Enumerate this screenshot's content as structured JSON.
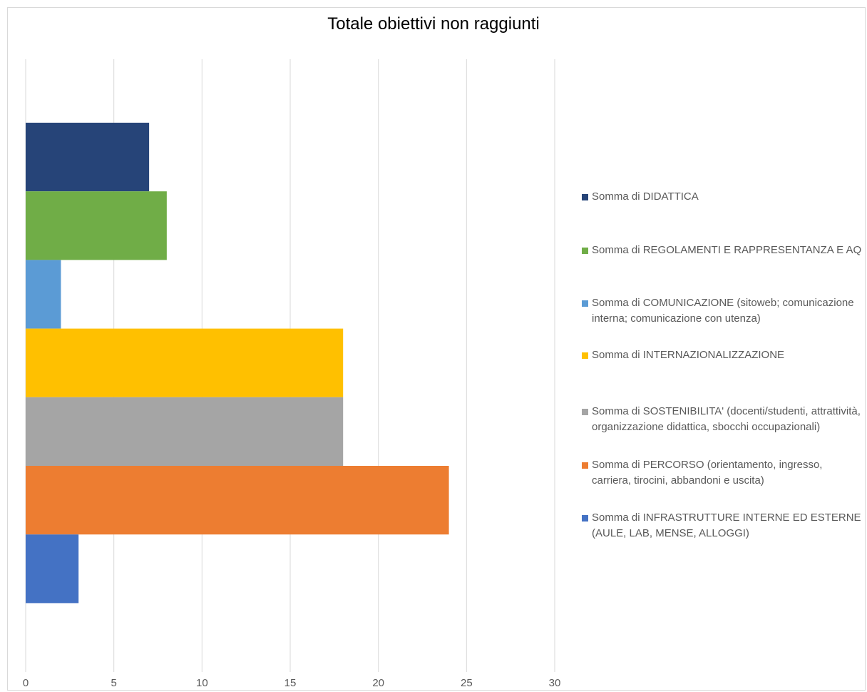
{
  "chart_data": {
    "type": "bar",
    "orientation": "horizontal",
    "title": "Totale obiettivi non raggiunti",
    "xlabel": "",
    "ylabel": "",
    "xlim": [
      0,
      30
    ],
    "x_ticks": [
      "0",
      "5",
      "10",
      "15",
      "20",
      "25",
      "30"
    ],
    "grid": "vertical",
    "legend_position": "right",
    "series": [
      {
        "name": "Somma di DIDATTICA",
        "value": 7,
        "color": "#264478"
      },
      {
        "name": "Somma di REGOLAMENTI E RAPPRESENTANZA E AQ",
        "value": 8,
        "color": "#70AD47"
      },
      {
        "name": "Somma di COMUNICAZIONE (sitoweb; comunicazione interna; comunicazione con utenza)",
        "value": 2,
        "color": "#5B9BD5"
      },
      {
        "name": "Somma di INTERNAZIONALIZZAZIONE",
        "value": 18,
        "color": "#FFC000"
      },
      {
        "name": "Somma di SOSTENIBILITA' (docenti/studenti, attrattività, organizzazione didattica, sbocchi occupazionali)",
        "value": 18,
        "color": "#A5A5A5"
      },
      {
        "name": "Somma di PERCORSO (orientamento, ingresso, carriera, tirocini, abbandoni e uscita)",
        "value": 24,
        "color": "#ED7D31"
      },
      {
        "name": "Somma di INFRASTRUTTURE INTERNE ED ESTERNE (AULE, LAB, MENSE, ALLOGGI)",
        "value": 3,
        "color": "#4472C4"
      }
    ]
  }
}
